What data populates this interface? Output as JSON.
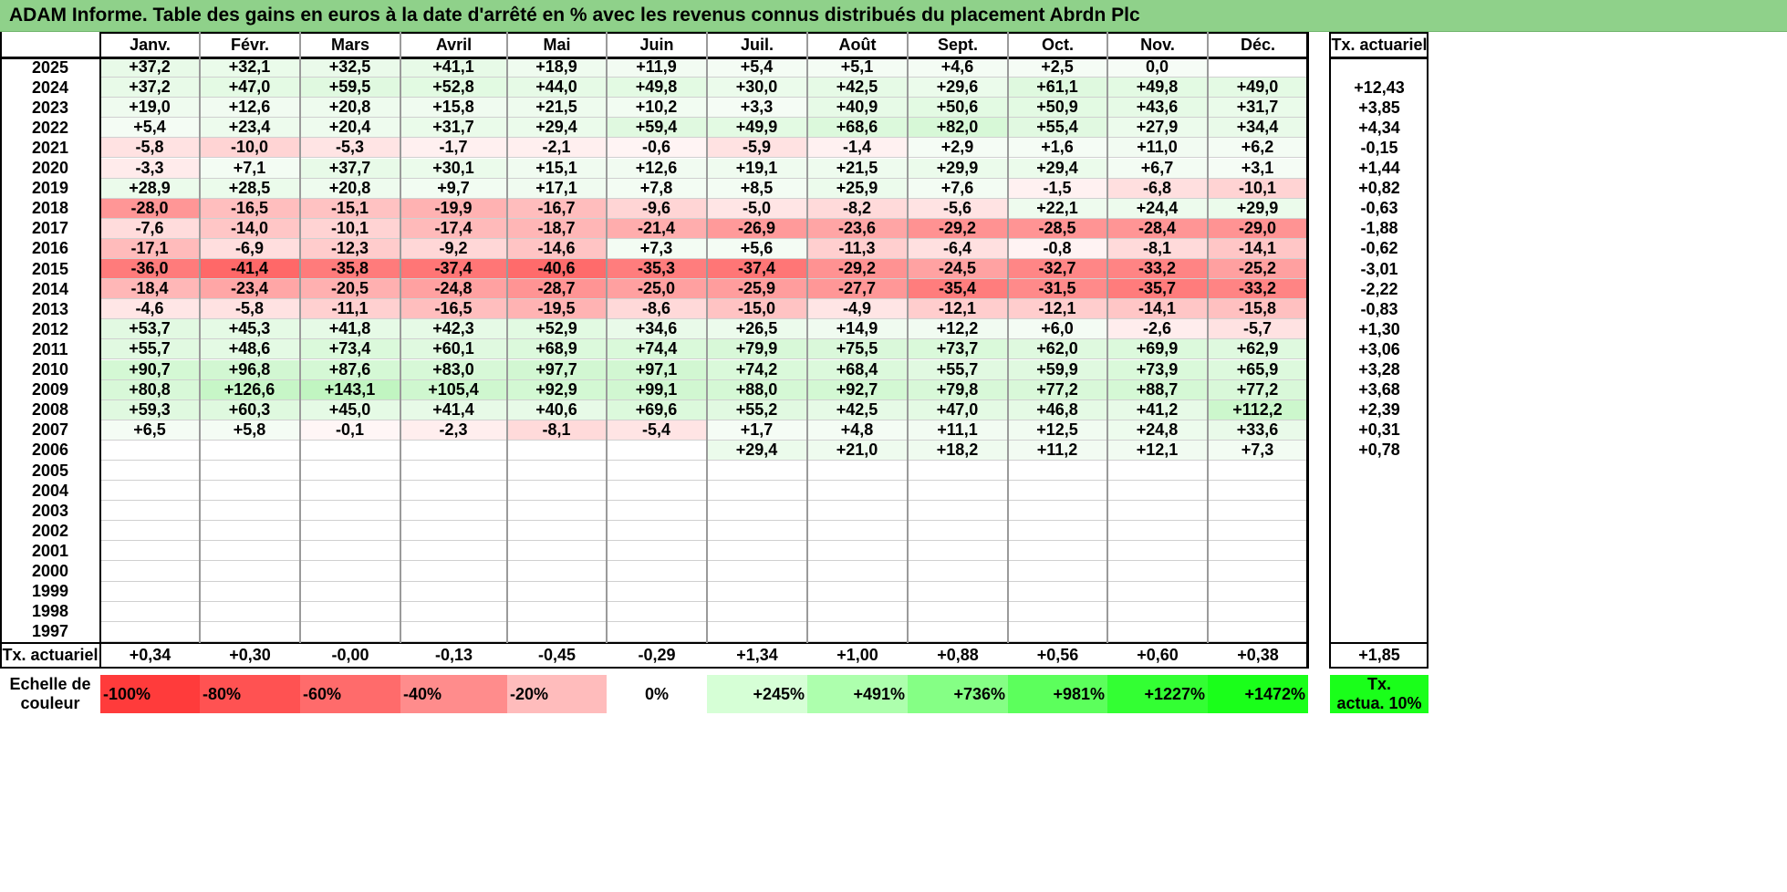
{
  "title": "ADAM Informe. Table des gains en euros à la date d'arrêté en % avec les revenus connus distribués du placement Abrdn Plc",
  "months": [
    "Janv.",
    "Févr.",
    "Mars",
    "Avril",
    "Mai",
    "Juin",
    "Juil.",
    "Août",
    "Sept.",
    "Oct.",
    "Nov.",
    "Déc."
  ],
  "tx_header": "Tx. actuariel",
  "rows": [
    {
      "year": "2025",
      "values": [
        "+37,2",
        "+32,1",
        "+32,5",
        "+41,1",
        "+18,9",
        "+11,9",
        "+5,4",
        "+5,1",
        "+4,6",
        "+2,5",
        "0,0",
        ""
      ],
      "tx": ""
    },
    {
      "year": "2024",
      "values": [
        "+37,2",
        "+47,0",
        "+59,5",
        "+52,8",
        "+44,0",
        "+49,8",
        "+30,0",
        "+42,5",
        "+29,6",
        "+61,1",
        "+49,8",
        "+49,0"
      ],
      "tx": "+12,43"
    },
    {
      "year": "2023",
      "values": [
        "+19,0",
        "+12,6",
        "+20,8",
        "+15,8",
        "+21,5",
        "+10,2",
        "+3,3",
        "+40,9",
        "+50,6",
        "+50,9",
        "+43,6",
        "+31,7"
      ],
      "tx": "+3,85"
    },
    {
      "year": "2022",
      "values": [
        "+5,4",
        "+23,4",
        "+20,4",
        "+31,7",
        "+29,4",
        "+59,4",
        "+49,9",
        "+68,6",
        "+82,0",
        "+55,4",
        "+27,9",
        "+34,4"
      ],
      "tx": "+4,34"
    },
    {
      "year": "2021",
      "values": [
        "-5,8",
        "-10,0",
        "-5,3",
        "-1,7",
        "-2,1",
        "-0,6",
        "-5,9",
        "-1,4",
        "+2,9",
        "+1,6",
        "+11,0",
        "+6,2"
      ],
      "tx": "-0,15"
    },
    {
      "year": "2020",
      "values": [
        "-3,3",
        "+7,1",
        "+37,7",
        "+30,1",
        "+15,1",
        "+12,6",
        "+19,1",
        "+21,5",
        "+29,9",
        "+29,4",
        "+6,7",
        "+3,1"
      ],
      "tx": "+1,44"
    },
    {
      "year": "2019",
      "values": [
        "+28,9",
        "+28,5",
        "+20,8",
        "+9,7",
        "+17,1",
        "+7,8",
        "+8,5",
        "+25,9",
        "+7,6",
        "-1,5",
        "-6,8",
        "-10,1"
      ],
      "tx": "+0,82"
    },
    {
      "year": "2018",
      "values": [
        "-28,0",
        "-16,5",
        "-15,1",
        "-19,9",
        "-16,7",
        "-9,6",
        "-5,0",
        "-8,2",
        "-5,6",
        "+22,1",
        "+24,4",
        "+29,9"
      ],
      "tx": "-0,63"
    },
    {
      "year": "2017",
      "values": [
        "-7,6",
        "-14,0",
        "-10,1",
        "-17,4",
        "-18,7",
        "-21,4",
        "-26,9",
        "-23,6",
        "-29,2",
        "-28,5",
        "-28,4",
        "-29,0"
      ],
      "tx": "-1,88"
    },
    {
      "year": "2016",
      "values": [
        "-17,1",
        "-6,9",
        "-12,3",
        "-9,2",
        "-14,6",
        "+7,3",
        "+5,6",
        "-11,3",
        "-6,4",
        "-0,8",
        "-8,1",
        "-14,1"
      ],
      "tx": "-0,62"
    },
    {
      "year": "2015",
      "values": [
        "-36,0",
        "-41,4",
        "-35,8",
        "-37,4",
        "-40,6",
        "-35,3",
        "-37,4",
        "-29,2",
        "-24,5",
        "-32,7",
        "-33,2",
        "-25,2"
      ],
      "tx": "-3,01"
    },
    {
      "year": "2014",
      "values": [
        "-18,4",
        "-23,4",
        "-20,5",
        "-24,8",
        "-28,7",
        "-25,0",
        "-25,9",
        "-27,7",
        "-35,4",
        "-31,5",
        "-35,7",
        "-33,2"
      ],
      "tx": "-2,22"
    },
    {
      "year": "2013",
      "values": [
        "-4,6",
        "-5,8",
        "-11,1",
        "-16,5",
        "-19,5",
        "-8,6",
        "-15,0",
        "-4,9",
        "-12,1",
        "-12,1",
        "-14,1",
        "-15,8"
      ],
      "tx": "-0,83"
    },
    {
      "year": "2012",
      "values": [
        "+53,7",
        "+45,3",
        "+41,8",
        "+42,3",
        "+52,9",
        "+34,6",
        "+26,5",
        "+14,9",
        "+12,2",
        "+6,0",
        "-2,6",
        "-5,7"
      ],
      "tx": "+1,30"
    },
    {
      "year": "2011",
      "values": [
        "+55,7",
        "+48,6",
        "+73,4",
        "+60,1",
        "+68,9",
        "+74,4",
        "+79,9",
        "+75,5",
        "+73,7",
        "+62,0",
        "+69,9",
        "+62,9"
      ],
      "tx": "+3,06"
    },
    {
      "year": "2010",
      "values": [
        "+90,7",
        "+96,8",
        "+87,6",
        "+83,0",
        "+97,7",
        "+97,1",
        "+74,2",
        "+68,4",
        "+55,7",
        "+59,9",
        "+73,9",
        "+65,9"
      ],
      "tx": "+3,28"
    },
    {
      "year": "2009",
      "values": [
        "+80,8",
        "+126,6",
        "+143,1",
        "+105,4",
        "+92,9",
        "+99,1",
        "+88,0",
        "+92,7",
        "+79,8",
        "+77,2",
        "+88,7",
        "+77,2"
      ],
      "tx": "+3,68"
    },
    {
      "year": "2008",
      "values": [
        "+59,3",
        "+60,3",
        "+45,0",
        "+41,4",
        "+40,6",
        "+69,6",
        "+55,2",
        "+42,5",
        "+47,0",
        "+46,8",
        "+41,2",
        "+112,2"
      ],
      "tx": "+2,39"
    },
    {
      "year": "2007",
      "values": [
        "+6,5",
        "+5,8",
        "-0,1",
        "-2,3",
        "-8,1",
        "-5,4",
        "+1,7",
        "+4,8",
        "+11,1",
        "+12,5",
        "+24,8",
        "+33,6"
      ],
      "tx": "+0,31"
    },
    {
      "year": "2006",
      "values": [
        "",
        "",
        "",
        "",
        "",
        "",
        "+29,4",
        "+21,0",
        "+18,2",
        "+11,2",
        "+12,1",
        "+7,3"
      ],
      "tx": "+0,78"
    },
    {
      "year": "2005",
      "values": [
        "",
        "",
        "",
        "",
        "",
        "",
        "",
        "",
        "",
        "",
        "",
        ""
      ],
      "tx": ""
    },
    {
      "year": "2004",
      "values": [
        "",
        "",
        "",
        "",
        "",
        "",
        "",
        "",
        "",
        "",
        "",
        ""
      ],
      "tx": ""
    },
    {
      "year": "2003",
      "values": [
        "",
        "",
        "",
        "",
        "",
        "",
        "",
        "",
        "",
        "",
        "",
        ""
      ],
      "tx": ""
    },
    {
      "year": "2002",
      "values": [
        "",
        "",
        "",
        "",
        "",
        "",
        "",
        "",
        "",
        "",
        "",
        ""
      ],
      "tx": ""
    },
    {
      "year": "2001",
      "values": [
        "",
        "",
        "",
        "",
        "",
        "",
        "",
        "",
        "",
        "",
        "",
        ""
      ],
      "tx": ""
    },
    {
      "year": "2000",
      "values": [
        "",
        "",
        "",
        "",
        "",
        "",
        "",
        "",
        "",
        "",
        "",
        ""
      ],
      "tx": ""
    },
    {
      "year": "1999",
      "values": [
        "",
        "",
        "",
        "",
        "",
        "",
        "",
        "",
        "",
        "",
        "",
        ""
      ],
      "tx": ""
    },
    {
      "year": "1998",
      "values": [
        "",
        "",
        "",
        "",
        "",
        "",
        "",
        "",
        "",
        "",
        "",
        ""
      ],
      "tx": ""
    },
    {
      "year": "1997",
      "values": [
        "",
        "",
        "",
        "",
        "",
        "",
        "",
        "",
        "",
        "",
        "",
        ""
      ],
      "tx": ""
    }
  ],
  "footer": {
    "label": "Tx. actuariel",
    "values": [
      "+0,34",
      "+0,30",
      "-0,00",
      "-0,13",
      "-0,45",
      "-0,29",
      "+1,34",
      "+1,00",
      "+0,88",
      "+0,56",
      "+0,60",
      "+0,38"
    ],
    "tx": "+1,85"
  },
  "legend": {
    "label_line1": "Echelle de",
    "label_line2": "couleur",
    "items": [
      {
        "text": "-100%",
        "color": "#ff3b3b"
      },
      {
        "text": "-80%",
        "color": "#ff5252"
      },
      {
        "text": "-60%",
        "color": "#ff6b6b"
      },
      {
        "text": "-40%",
        "color": "#ff8c8c"
      },
      {
        "text": "-20%",
        "color": "#ffbcbc"
      },
      {
        "text": "0%",
        "color": "#ffffff"
      },
      {
        "text": "+245%",
        "color": "#d6ffd6"
      },
      {
        "text": "+491%",
        "color": "#adffad"
      },
      {
        "text": "+736%",
        "color": "#85ff85"
      },
      {
        "text": "+981%",
        "color": "#5cff5c"
      },
      {
        "text": "+1227%",
        "color": "#33ff33"
      },
      {
        "text": "+1472%",
        "color": "#1aff1a"
      }
    ],
    "tx_line1": "Tx.",
    "tx_line2": "actua. 10%",
    "tx_color": "#1aff1a"
  }
}
